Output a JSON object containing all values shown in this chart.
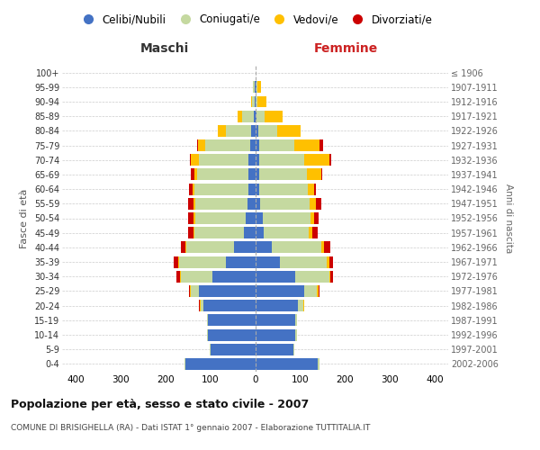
{
  "age_groups": [
    "0-4",
    "5-9",
    "10-14",
    "15-19",
    "20-24",
    "25-29",
    "30-34",
    "35-39",
    "40-44",
    "45-49",
    "50-54",
    "55-59",
    "60-64",
    "65-69",
    "70-74",
    "75-79",
    "80-84",
    "85-89",
    "90-94",
    "95-99",
    "100+"
  ],
  "birth_years": [
    "2002-2006",
    "1997-2001",
    "1992-1996",
    "1987-1991",
    "1982-1986",
    "1977-1981",
    "1972-1976",
    "1967-1971",
    "1962-1966",
    "1957-1961",
    "1952-1956",
    "1947-1951",
    "1942-1946",
    "1937-1941",
    "1932-1936",
    "1927-1931",
    "1922-1926",
    "1917-1921",
    "1912-1916",
    "1907-1911",
    "≤ 1906"
  ],
  "male_celibe": [
    155,
    100,
    105,
    105,
    115,
    125,
    95,
    65,
    48,
    25,
    22,
    18,
    15,
    15,
    15,
    12,
    10,
    4,
    2,
    2,
    0
  ],
  "male_coniugato": [
    3,
    2,
    2,
    2,
    7,
    18,
    70,
    105,
    105,
    110,
    112,
    115,
    120,
    115,
    110,
    100,
    55,
    25,
    5,
    3,
    0
  ],
  "male_vedovo": [
    0,
    0,
    0,
    0,
    2,
    2,
    2,
    2,
    2,
    3,
    3,
    4,
    4,
    5,
    18,
    15,
    18,
    10,
    3,
    0,
    0
  ],
  "male_divorziato": [
    0,
    0,
    0,
    0,
    2,
    3,
    8,
    10,
    10,
    12,
    12,
    12,
    8,
    8,
    3,
    3,
    0,
    0,
    0,
    0,
    0
  ],
  "female_celibe": [
    140,
    85,
    90,
    90,
    95,
    110,
    90,
    55,
    38,
    20,
    18,
    12,
    10,
    10,
    10,
    10,
    8,
    4,
    2,
    3,
    0
  ],
  "female_coniugato": [
    3,
    3,
    3,
    3,
    12,
    28,
    75,
    105,
    110,
    100,
    105,
    110,
    108,
    105,
    100,
    78,
    42,
    18,
    4,
    2,
    0
  ],
  "female_vedovo": [
    0,
    0,
    0,
    0,
    2,
    3,
    3,
    5,
    5,
    8,
    8,
    14,
    14,
    32,
    55,
    55,
    52,
    40,
    20,
    8,
    2
  ],
  "female_divorziato": [
    0,
    0,
    0,
    0,
    0,
    3,
    5,
    8,
    15,
    12,
    10,
    12,
    3,
    3,
    5,
    8,
    0,
    0,
    0,
    0,
    0
  ],
  "color_celibe": "#4472c4",
  "color_coniugato": "#c5d9a0",
  "color_vedovo": "#ffc000",
  "color_divorziato": "#cc0000",
  "title": "Popolazione per età, sesso e stato civile - 2007",
  "subtitle": "COMUNE DI BRISIGHELLA (RA) - Dati ISTAT 1° gennaio 2007 - Elaborazione TUTTITALIA.IT",
  "ylabel_left": "Fasce di età",
  "ylabel_right": "Anni di nascita",
  "label_maschi": "Maschi",
  "label_femmine": "Femmine",
  "legend_labels": [
    "Celibi/Nubili",
    "Coniugati/e",
    "Vedovi/e",
    "Divorziati/e"
  ],
  "xlim": 430,
  "bg_color": "#ffffff",
  "grid_color": "#cccccc"
}
